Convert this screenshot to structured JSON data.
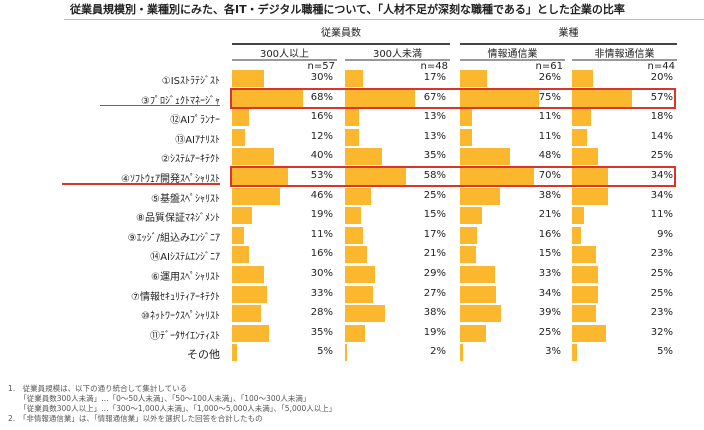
{
  "chart_data": {
    "type": "bar",
    "title": "従業員規模別・業種別にみた、各IT・デジタル職種について、「人材不足が深刻な職種である」とした企業の比率",
    "groups": [
      {
        "label": "従業員数",
        "columns": [
          0,
          1
        ]
      },
      {
        "label": "業種",
        "columns": [
          2,
          3
        ]
      }
    ],
    "columns": [
      {
        "label": "300人以上",
        "n": "n=57"
      },
      {
        "label": "300人未満",
        "n": "n=48"
      },
      {
        "label": "情報通信業",
        "n": "n=61"
      },
      {
        "label": "非情報通信業",
        "n": "n=44"
      }
    ],
    "categories": [
      "①ISｽﾄﾗﾃｼﾞｽﾄ",
      "③ﾌﾟﾛｼﾞｪｸﾄﾏﾈｰｼﾞｬ",
      "⑫AIﾌﾟﾗﾝﾅｰ",
      "⑬AIｱﾅﾘｽﾄ",
      "②ｼｽﾃﾑｱｰｷﾃｸﾄ",
      "④ｿﾌﾄｳｪｱ開発ｽﾍﾟｼｬﾘｽﾄ",
      "⑤基盤ｽﾍﾟｼｬﾘｽﾄ",
      "⑧品質保証ﾏﾈｼﾞﾒﾝﾄ",
      "⑨ｴｯｼﾞ/組込みｴﾝｼﾞﾆｱ",
      "⑭AIｼｽﾃﾑｴﾝｼﾞﾆｱ",
      "⑥運用ｽﾍﾟｼｬﾘｽﾄ",
      "⑦情報ｾｷｭﾘﾃｨｱｰｷﾃｸﾄ",
      "⑩ﾈｯﾄﾜｰｸｽﾍﾟｼｬﾘｽﾄ",
      "⑪ﾃﾞｰﾀｻｲｴﾝﾃｨｽﾄ",
      "その他"
    ],
    "series": [
      {
        "name": "300人以上",
        "values": [
          30,
          68,
          16,
          12,
          40,
          53,
          46,
          19,
          11,
          16,
          30,
          33,
          28,
          35,
          5
        ]
      },
      {
        "name": "300人未満",
        "values": [
          17,
          67,
          13,
          13,
          35,
          58,
          25,
          15,
          17,
          21,
          29,
          27,
          38,
          19,
          2
        ]
      },
      {
        "name": "情報通信業",
        "values": [
          26,
          75,
          11,
          11,
          48,
          70,
          38,
          21,
          16,
          15,
          33,
          34,
          39,
          25,
          3
        ]
      },
      {
        "name": "非情報通信業",
        "values": [
          20,
          57,
          18,
          14,
          25,
          34,
          34,
          11,
          9,
          23,
          25,
          25,
          23,
          32,
          5
        ]
      }
    ],
    "unit": "%",
    "highlighted_rows": [
      1,
      5
    ],
    "bar_color": "#FBB82E",
    "highlight_color": "#D9352B",
    "ylim": [
      0,
      100
    ]
  },
  "notes": [
    "1.　従業員規模は、以下の通り統合して集計している",
    "　　「従業員数300人未満」…「0～50人未満」、「50～100人未満」、「100～300人未満」",
    "　　「従業員数300人以上」…「300～1,000人未満」、「1,000～5,000人未満」、「5,000人以上」",
    "2.　「非情報通信業」は、「情報通信業」以外を選択した回答を合計したもの"
  ]
}
